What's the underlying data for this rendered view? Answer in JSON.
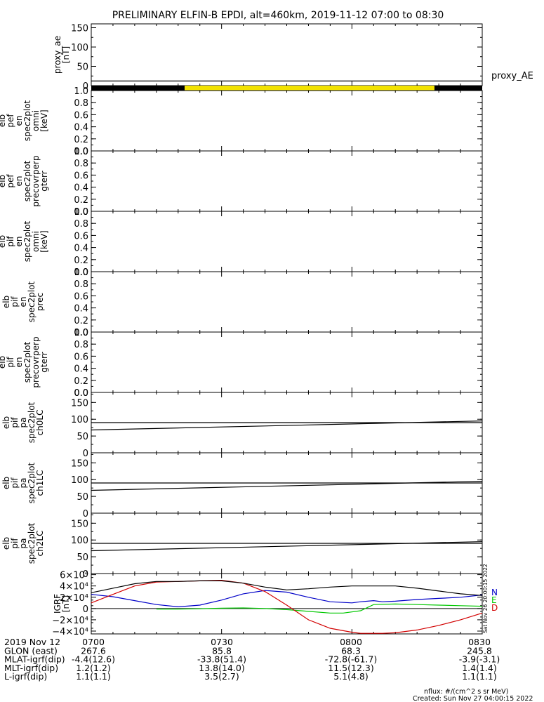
{
  "title": "PRELIMINARY ELFIN-B EPDI, alt=460km, 2019-11-12 07:00 to 08:30",
  "colors": {
    "black": "#000000",
    "yellow": "#f2e200",
    "blue": "#0000c8",
    "green": "#00c800",
    "red": "#d20000"
  },
  "chart_data": [
    {
      "type": "line",
      "id": "proxy_ae",
      "ylabel": [
        "proxy_ae",
        "[nT]"
      ],
      "ylim": [
        0,
        160
      ],
      "yticks": [
        "150",
        "100",
        "50",
        "0"
      ],
      "yticks_values": [
        150,
        100,
        50,
        0
      ],
      "legend": "proxy_AE",
      "x": [
        0,
        90
      ],
      "series": [
        {
          "values": [
            12,
            12
          ]
        }
      ]
    },
    {
      "type": "bar",
      "id": "phase_bar",
      "segments": [
        {
          "x": [
            0,
            21.5
          ],
          "color": "black"
        },
        {
          "x": [
            21.5,
            79
          ],
          "color": "yellow"
        },
        {
          "x": [
            79,
            90
          ],
          "color": "black"
        }
      ]
    },
    {
      "type": "heatmap",
      "id": "pef_omni",
      "ylabel": [
        "elb",
        "pef",
        "en",
        "spec2plot",
        "omni",
        "[keV]"
      ],
      "ylim": [
        0,
        1
      ],
      "yticks": [
        "1.0",
        "0.8",
        "0.6",
        "0.4",
        "0.2",
        "0.0"
      ],
      "yticks_values": [
        1.0,
        0.8,
        0.6,
        0.4,
        0.2,
        0.0
      ],
      "extra_tick": "0.0"
    },
    {
      "type": "heatmap",
      "id": "pef_precovrperp",
      "ylabel": [
        "elb",
        "pef",
        "en",
        "spec2plot",
        "precovrperp",
        "gterr"
      ],
      "ylim": [
        0,
        1
      ],
      "yticks": [
        "1.0",
        "0.8",
        "0.6",
        "0.4",
        "0.2",
        "0.0"
      ],
      "yticks_values": [
        1.0,
        0.8,
        0.6,
        0.4,
        0.2,
        0.0
      ],
      "extra_tick": "0.0"
    },
    {
      "type": "heatmap",
      "id": "pif_omni",
      "ylabel": [
        "elb",
        "pif",
        "en",
        "spec2plot",
        "omni",
        "[keV]"
      ],
      "ylim": [
        0,
        1
      ],
      "yticks": [
        "1.0",
        "0.8",
        "0.6",
        "0.4",
        "0.2",
        "0.0"
      ],
      "yticks_values": [
        1.0,
        0.8,
        0.6,
        0.4,
        0.2,
        0.0
      ],
      "extra_tick": "0.0"
    },
    {
      "type": "heatmap",
      "id": "pif_prec",
      "ylabel": [
        "elb",
        "pif",
        "en",
        "spec2plot",
        "prec"
      ],
      "ylim": [
        0,
        1
      ],
      "yticks": [
        "1.0",
        "0.8",
        "0.6",
        "0.4",
        "0.2",
        "0.0"
      ],
      "yticks_values": [
        1.0,
        0.8,
        0.6,
        0.4,
        0.2,
        0.0
      ],
      "extra_tick": "0.0"
    },
    {
      "type": "heatmap",
      "id": "pif_precovrperp",
      "ylabel": [
        "elb",
        "pif",
        "en",
        "spec2plot",
        "precovrperp",
        "gterr"
      ],
      "ylim": [
        0,
        1
      ],
      "yticks": [
        "1.0",
        "0.8",
        "0.6",
        "0.4",
        "0.2",
        "0.0"
      ],
      "yticks_values": [
        1.0,
        0.8,
        0.6,
        0.4,
        0.2,
        0.0
      ],
      "extra_tick": "0.0"
    },
    {
      "type": "line",
      "id": "pa_ch0",
      "ylabel": [
        "elb",
        "pif",
        "pa",
        "spec2plot",
        "ch0LC"
      ],
      "ylim": [
        0,
        180
      ],
      "yticks": [
        "150",
        "100",
        "50",
        "0"
      ],
      "yticks_values": [
        150,
        100,
        50,
        0
      ],
      "x": [
        0,
        90
      ],
      "series": [
        {
          "values": [
            68,
            95
          ]
        },
        {
          "values": [
            90,
            90
          ]
        }
      ]
    },
    {
      "type": "line",
      "id": "pa_ch1",
      "ylabel": [
        "elb",
        "pif",
        "pa",
        "spec2plot",
        "ch1LC"
      ],
      "ylim": [
        0,
        180
      ],
      "yticks": [
        "150",
        "100",
        "50",
        "0"
      ],
      "yticks_values": [
        150,
        100,
        50,
        0
      ],
      "x": [
        0,
        90
      ],
      "series": [
        {
          "values": [
            68,
            95
          ]
        },
        {
          "values": [
            90,
            90
          ]
        }
      ]
    },
    {
      "type": "line",
      "id": "pa_ch2",
      "ylabel": [
        "elb",
        "pif",
        "pa",
        "spec2plot",
        "ch2LC"
      ],
      "ylim": [
        0,
        180
      ],
      "yticks": [
        "150",
        "100",
        "50",
        "0"
      ],
      "yticks_values": [
        150,
        100,
        50,
        0
      ],
      "x": [
        0,
        90
      ],
      "series": [
        {
          "values": [
            68,
            95
          ]
        },
        {
          "values": [
            90,
            90
          ]
        }
      ]
    },
    {
      "type": "line",
      "id": "igrf",
      "ylabel": [
        "IGRF",
        "[nT]"
      ],
      "ylim": [
        -45000,
        62000
      ],
      "yticks": [
        "6×10⁴",
        "4×10⁴",
        "2×10⁴",
        "0",
        "−2×10⁴",
        "−4×10⁴"
      ],
      "yticks_values": [
        60000,
        40000,
        20000,
        0,
        -20000,
        -40000
      ],
      "legend": [
        "N",
        "E",
        "D"
      ],
      "x": [
        0,
        5,
        10,
        15,
        20,
        25,
        30,
        35,
        40,
        45,
        50,
        55,
        60,
        62,
        65,
        67,
        70,
        75,
        80,
        85,
        90
      ],
      "series": [
        {
          "name": "N",
          "color": "blue",
          "values": [
            25000,
            21000,
            14000,
            7000,
            3000,
            6000,
            15000,
            26000,
            32000,
            29000,
            20000,
            12000,
            10000,
            12000,
            14000,
            12000,
            13000,
            16000,
            18000,
            20000,
            24000
          ]
        },
        {
          "name": "E",
          "color": "green",
          "x": [
            15,
            20,
            25,
            30,
            35,
            40,
            45,
            50,
            55,
            58,
            62,
            65,
            70,
            75,
            80,
            85,
            90
          ],
          "values": [
            -1000,
            -1000,
            -500,
            500,
            1000,
            0,
            -2000,
            -5000,
            -8000,
            -8000,
            -4000,
            7000,
            8000,
            7000,
            6000,
            5000,
            4000
          ]
        },
        {
          "name": "D",
          "color": "red",
          "values": [
            10000,
            25000,
            40000,
            47000,
            48000,
            49000,
            50000,
            45000,
            30000,
            6000,
            -20000,
            -35000,
            -42000,
            -44000,
            -44000,
            -44000,
            -43000,
            -38000,
            -30000,
            -20000,
            -8000
          ]
        },
        {
          "name": "total",
          "color": "black",
          "values": [
            28000,
            36000,
            44000,
            48000,
            48000,
            49000,
            49000,
            45000,
            38000,
            33000,
            35000,
            38000,
            40000,
            40000,
            40000,
            40000,
            40000,
            36000,
            31000,
            26000,
            23000
          ]
        }
      ]
    }
  ],
  "xticks": [
    "0700",
    "0730",
    "0800",
    "0830"
  ],
  "xticks_values": [
    0,
    30,
    60,
    90
  ],
  "footer_rows": [
    {
      "label": "2019 Nov 12",
      "values": [
        "0700",
        "0730",
        "0800",
        "0830"
      ]
    },
    {
      "label": "GLON (east)",
      "values": [
        "267.6",
        "85.8",
        "68.3",
        "245.8"
      ]
    },
    {
      "label": "MLAT-igrf(dip)",
      "values": [
        "-4.4(12.6)",
        "-33.8(51.4)",
        "-72.8(-61.7)",
        "-3.9(-3.1)"
      ]
    },
    {
      "label": "MLT-igrf(dip)",
      "values": [
        "1.2(1.2)",
        "13.8(14.0)",
        "11.5(12.3)",
        "1.4(1.4)"
      ]
    },
    {
      "label": "L-igrf(dip)",
      "values": [
        "1.1(1.1)",
        "3.5(2.7)",
        "5.1(4.8)",
        "1.1(1.1)"
      ]
    }
  ],
  "vertical_stamp": "Sat Nov 26 20:00:15 2022",
  "footnote_units": "nflux: #/(cm^2 s sr MeV)",
  "footnote_created": "Created: Sun Nov 27 04:00:15 2022"
}
